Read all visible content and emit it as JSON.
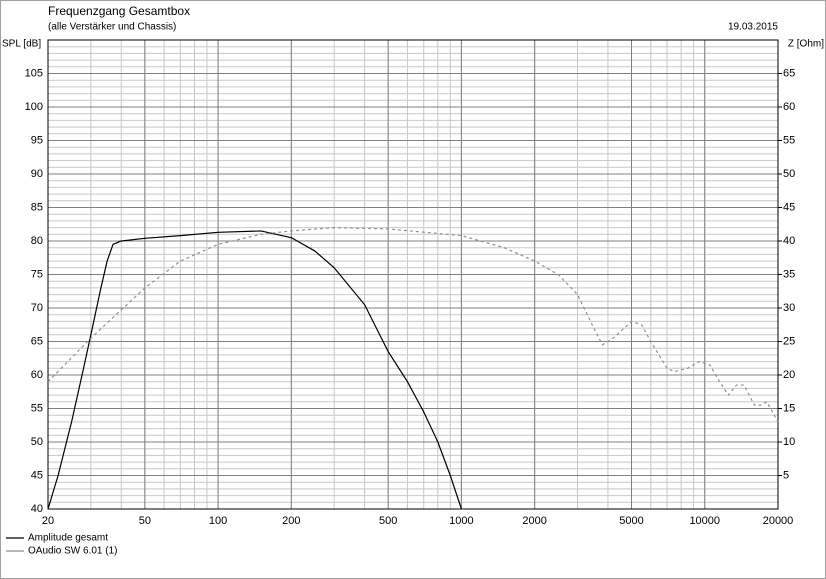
{
  "chart_data": {
    "type": "line",
    "title": "Frequenzgang Gesamtbox",
    "subtitle": "(alle Verstärker und Chassis)",
    "date": "19.03.2015",
    "ylabel": "SPL [dB]",
    "y2label": "Z [Ohm]",
    "xscale": "log",
    "xlim": [
      20,
      20000
    ],
    "xticks": [
      20,
      50,
      100,
      200,
      500,
      1000,
      2000,
      5000,
      10000,
      20000
    ],
    "ylim": [
      40,
      110
    ],
    "yticks": [
      40,
      45,
      50,
      55,
      60,
      65,
      70,
      75,
      80,
      85,
      90,
      95,
      100,
      105
    ],
    "y2lim": [
      0,
      70
    ],
    "y2ticks": [
      5,
      10,
      15,
      20,
      25,
      30,
      35,
      40,
      45,
      50,
      55,
      60,
      65
    ],
    "grid": true,
    "legend": "bottom-left",
    "series": [
      {
        "name": "Amplitude gesamt",
        "color": "#000000",
        "x": [
          20,
          22,
          25,
          28,
          30,
          33,
          35,
          37,
          40,
          50,
          70,
          100,
          150,
          200,
          250,
          300,
          400,
          500,
          600,
          700,
          800,
          900,
          1000
        ],
        "values": [
          40,
          45,
          53,
          61,
          66,
          73,
          77,
          79.5,
          80,
          80.4,
          80.8,
          81.3,
          81.5,
          80.5,
          78.5,
          76,
          70.5,
          63.5,
          59,
          54.5,
          50,
          45,
          40
        ]
      },
      {
        "name": "OAudio SW 6.01 (1)",
        "color": "#909090",
        "axis": "y2",
        "dashed": true,
        "x": [
          20,
          30,
          50,
          70,
          100,
          150,
          200,
          300,
          500,
          1000,
          1500,
          2000,
          2500,
          3000,
          3500,
          3800,
          4200,
          5000,
          5500,
          6000,
          7000,
          7500,
          8500,
          9500,
          10500,
          11500,
          12500,
          13500,
          14500,
          16000,
          17000,
          18000,
          20000
        ],
        "values": [
          19,
          25.5,
          33,
          37,
          39.5,
          41,
          41.5,
          42,
          41.8,
          40.8,
          39,
          37,
          35,
          32,
          27,
          24.5,
          25.5,
          28,
          27.5,
          25,
          21,
          20.5,
          21,
          22,
          21.5,
          19,
          17,
          18.5,
          18.5,
          15.5,
          15.5,
          16,
          13
        ]
      }
    ]
  }
}
